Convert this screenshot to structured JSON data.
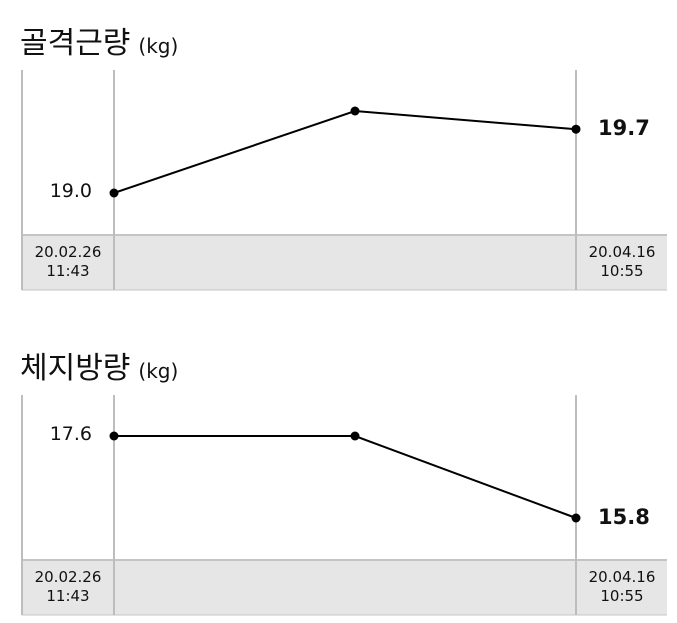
{
  "chart_data": [
    {
      "type": "line",
      "title": "골격근량",
      "unit": "(kg)",
      "categories": [
        "20.02.26 11:43",
        null,
        "20.04.16 10:55"
      ],
      "values": [
        19.0,
        19.9,
        19.7
      ],
      "value_labels": [
        "19.0",
        null,
        "19.7"
      ],
      "color": "#000000"
    },
    {
      "type": "line",
      "title": "체지방량",
      "unit": "(kg)",
      "categories": [
        "20.02.26 11:43",
        null,
        "20.04.16 10:55"
      ],
      "values": [
        17.6,
        17.6,
        15.8
      ],
      "value_labels": [
        "17.6",
        null,
        "15.8"
      ],
      "color": "#000000"
    }
  ]
}
